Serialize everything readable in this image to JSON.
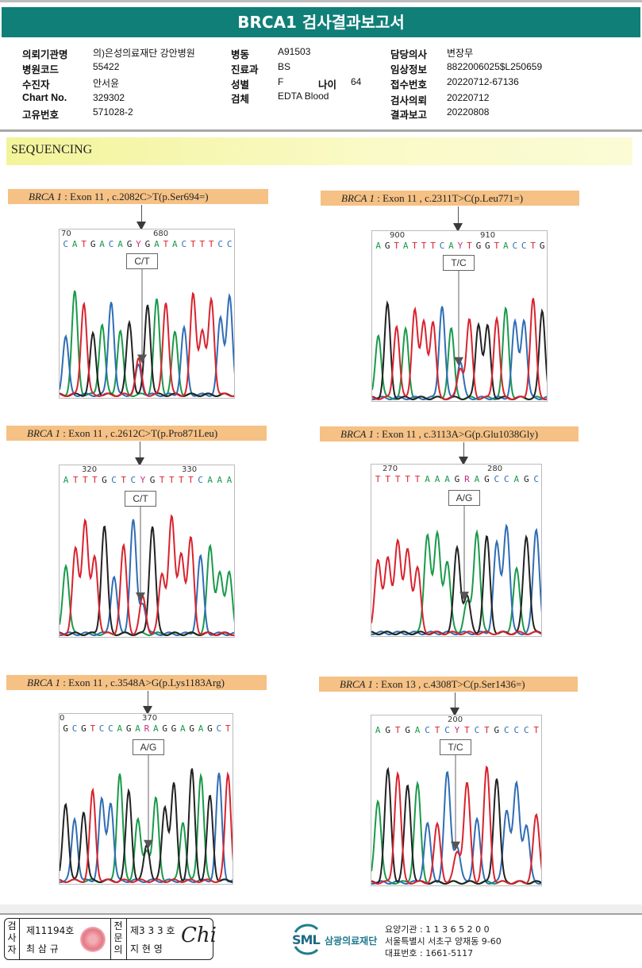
{
  "report": {
    "title": "BRCA1 검사결과보고서"
  },
  "patient_info": {
    "col1": [
      {
        "label": "의뢰기관명",
        "value": "의)은성의료재단 강안병원"
      },
      {
        "label": "병원코드",
        "value": "55422"
      },
      {
        "label": "수진자",
        "value": "안서윤"
      },
      {
        "label": "Chart No.",
        "value": "329302"
      },
      {
        "label": "고유번호",
        "value": "571028-2"
      }
    ],
    "col2": [
      {
        "label": "병동",
        "value": "A91503"
      },
      {
        "label": "진료과",
        "value": "BS"
      },
      {
        "label": "성별",
        "value": "F"
      },
      {
        "label": "검체",
        "value": "EDTA Blood"
      }
    ],
    "age": {
      "label": "나이",
      "value": "64"
    },
    "col3": [
      {
        "label": "담당의사",
        "value": "변장무"
      },
      {
        "label": "임상정보",
        "value": "8822006025$L250659"
      },
      {
        "label": "접수번호",
        "value": "20220712-67136"
      },
      {
        "label": "검사의뢰",
        "value": "20220712"
      },
      {
        "label": "결과보고",
        "value": "20220808"
      }
    ]
  },
  "section": {
    "title": "SEQUENCING"
  },
  "base_colors": {
    "A": "#1a9a4a",
    "C": "#2f6db5",
    "G": "#222222",
    "T": "#d9232e",
    "Y": "#c0307a",
    "R": "#c0307a"
  },
  "variants": [
    {
      "gene": "BRCA 1",
      "detail": " : Exon 11 , c.2082C>T(p.Ser694=)",
      "position_labels": [
        "70",
        "680"
      ],
      "bases": "CATGACAGYGATACTTTCC",
      "call": "C/T",
      "het_index": 8,
      "het_bases": [
        "C",
        "T"
      ]
    },
    {
      "gene": "BRCA 1",
      "detail": " : Exon 11 , c.2311T>C(p.Leu771=)",
      "position_labels": [
        "900",
        "910"
      ],
      "bases": "AGTATTTCAYTGGTACCTG",
      "call": "T/C",
      "het_index": 9,
      "het_bases": [
        "T",
        "C"
      ]
    },
    {
      "gene": "BRCA 1",
      "detail": " : Exon 11 , c.2612C>T(p.Pro871Leu)",
      "position_labels": [
        "320",
        "330"
      ],
      "bases": "ATTTGCTCYGTTTTCAAA",
      "call": "C/T",
      "het_index": 8,
      "het_bases": [
        "C",
        "T"
      ]
    },
    {
      "gene": "BRCA 1",
      "detail": " : Exon 11 , c.3113A>G(p.Glu1038Gly)",
      "position_labels": [
        "270",
        "280"
      ],
      "bases": "TTTTTAAAGRAGCCAGC",
      "call": "A/G",
      "het_index": 9,
      "het_bases": [
        "A",
        "G"
      ]
    },
    {
      "gene": "BRCA 1",
      "detail": " : Exon 11 , c.3548A>G(p.Lys1183Arg)",
      "position_labels": [
        "0",
        "370"
      ],
      "bases": "GCGTCCAGARAGGAGAGCT",
      "call": "A/G",
      "het_index": 9,
      "het_bases": [
        "A",
        "G"
      ]
    },
    {
      "gene": "BRCA 1",
      "detail": " : Exon 13 , c.4308T>C(p.Ser1436=)",
      "position_labels": [
        "200"
      ],
      "bases": "AGTGACTCYTCTGCCCT",
      "call": "T/C",
      "het_index": 8,
      "het_bases": [
        "T",
        "C"
      ]
    }
  ],
  "footer": {
    "examiner_label": "검사자",
    "examiner_no": "제11194호",
    "examiner_name": "최 삼 규",
    "specialist_label": "전문의",
    "specialist_no": "제3 3 3 호",
    "specialist_name": "지 현 영",
    "signature": "Chi",
    "org_logo": "SML",
    "org_name": "삼광의료재단",
    "care_code": "요양기관 : 1 1 3 6 5 2 0 0",
    "address": "서울특별시 서초구 양재동 9-60",
    "phone": "대표번호 : 1661-5117"
  }
}
